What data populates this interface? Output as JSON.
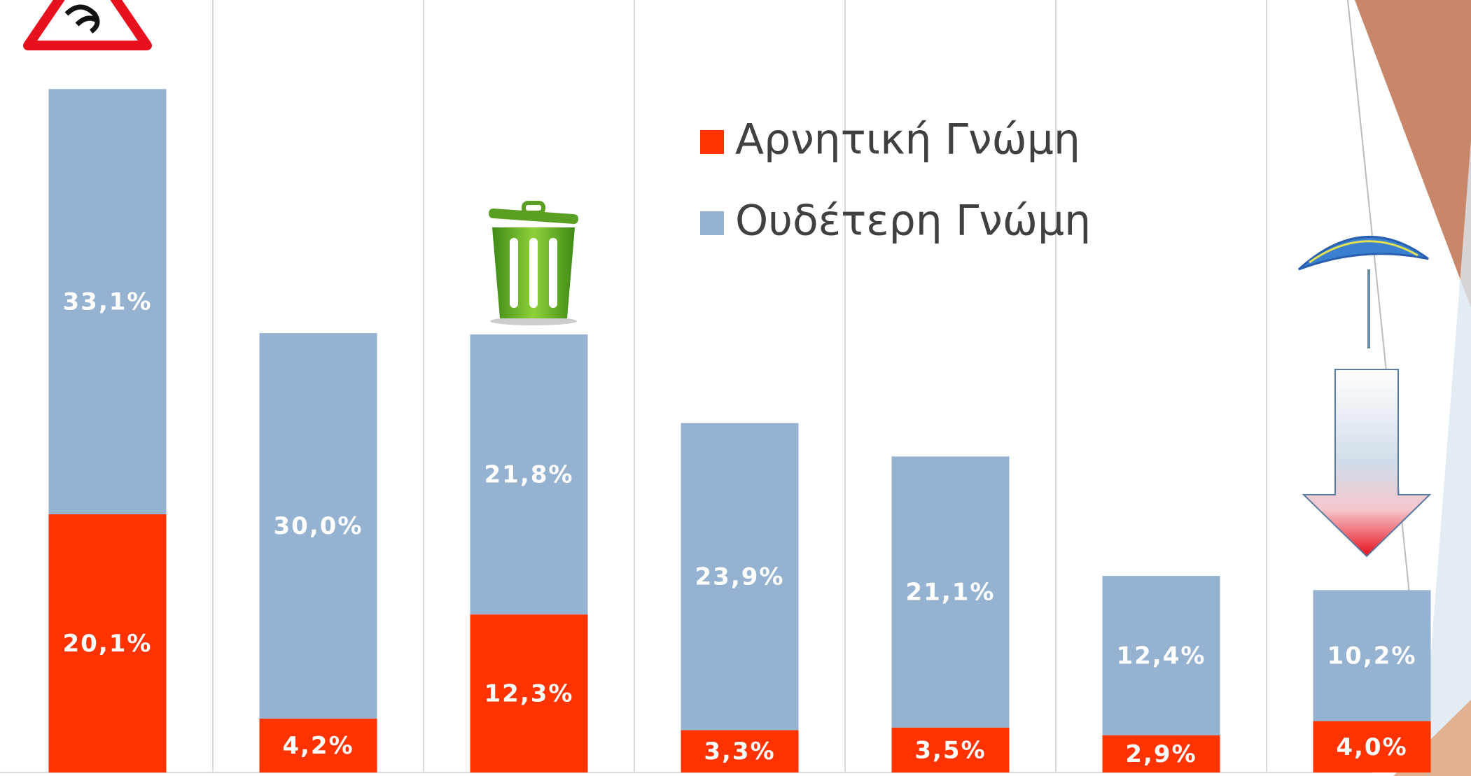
{
  "chart_data": {
    "type": "stacked-bar",
    "categories": [
      null,
      null,
      null,
      null,
      null,
      null,
      null
    ],
    "series": [
      {
        "name": "Αρνητική Γνώμη",
        "color": "#ff3300",
        "values": [
          20.1,
          4.2,
          12.3,
          3.3,
          3.5,
          2.9,
          4.0
        ],
        "value_labels": [
          "20,1%",
          "4,2%",
          "12,3%",
          "3,3%",
          "3,5%",
          "2,9%",
          "4,0%"
        ]
      },
      {
        "name": "Ουδέτερη Γνώμη",
        "color": "#95b3d1",
        "values": [
          33.1,
          30.0,
          21.8,
          23.9,
          21.1,
          12.4,
          10.2
        ],
        "value_labels": [
          "33,1%",
          "30,0%",
          "21,8%",
          "23,9%",
          "21,1%",
          "12,4%",
          "10,2%"
        ]
      }
    ]
  }
}
